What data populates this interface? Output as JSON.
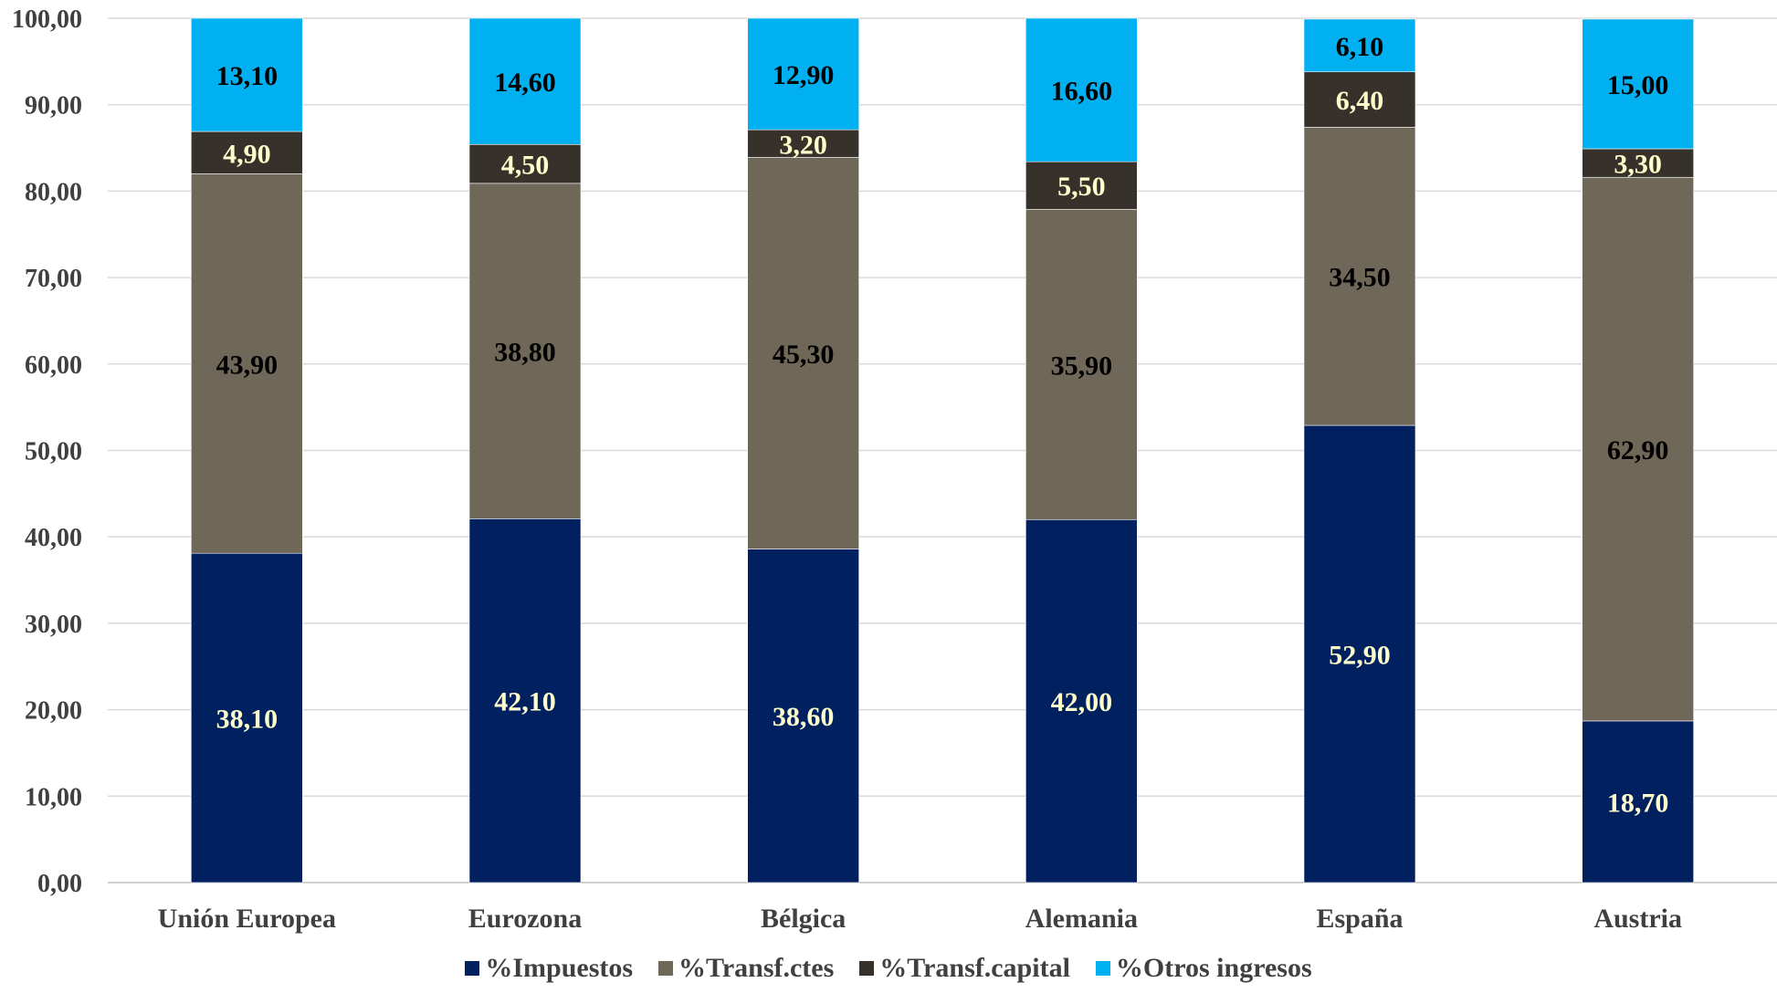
{
  "chart_data": {
    "type": "bar",
    "stacked": true,
    "categories": [
      "Unión Europea",
      "Eurozona",
      "Bélgica",
      "Alemania",
      "España",
      "Austria"
    ],
    "series": [
      {
        "name": "%Impuestos",
        "color": "#002060",
        "label_color": "#FFFFCC",
        "values": [
          38.1,
          42.1,
          38.6,
          42.0,
          52.9,
          18.7
        ],
        "labels": [
          "38,10",
          "42,10",
          "38,60",
          "42,00",
          "52,90",
          "18,70"
        ]
      },
      {
        "name": "%Transf.ctes",
        "color": "#6F6758",
        "label_color": "#000000",
        "values": [
          43.9,
          38.8,
          45.3,
          35.9,
          34.5,
          62.9
        ],
        "labels": [
          "43,90",
          "38,80",
          "45,30",
          "35,90",
          "34,50",
          "62,90"
        ]
      },
      {
        "name": "%Transf.capital",
        "color": "#36322B",
        "label_color": "#FFFFCC",
        "values": [
          4.9,
          4.5,
          3.2,
          5.5,
          6.4,
          3.3
        ],
        "labels": [
          "4,90",
          "4,50",
          "3,20",
          "5,50",
          "6,40",
          "3,30"
        ]
      },
      {
        "name": "%Otros ingresos",
        "color": "#00B0F0",
        "label_color": "#000000",
        "values": [
          13.1,
          14.6,
          12.9,
          16.6,
          6.1,
          15.0
        ],
        "labels": [
          "13,10",
          "14,60",
          "12,90",
          "16,60",
          "6,10",
          "15,00"
        ]
      }
    ],
    "ylim": [
      0,
      100
    ],
    "yticks": [
      "0,00",
      "10,00",
      "20,00",
      "30,00",
      "40,00",
      "50,00",
      "60,00",
      "70,00",
      "80,00",
      "90,00",
      "100,00"
    ],
    "title": "",
    "xlabel": "",
    "ylabel": "",
    "grid": true,
    "legend_position": "bottom"
  }
}
